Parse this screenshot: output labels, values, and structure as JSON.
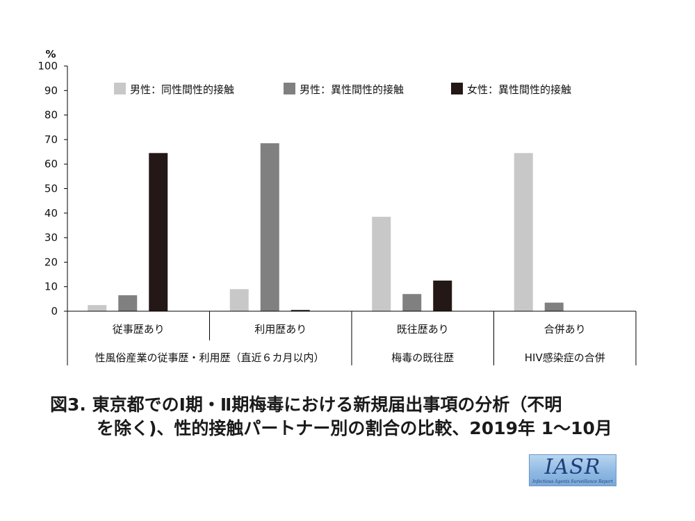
{
  "chart_data": {
    "type": "bar",
    "y_unit": "%",
    "ylim": [
      0,
      100
    ],
    "yticks": [
      0,
      10,
      20,
      30,
      40,
      50,
      60,
      70,
      80,
      90,
      100
    ],
    "grid": false,
    "legend_position": "top",
    "categories": [
      "従事歴あり",
      "利用歴あり",
      "既往歴あり",
      "合併あり"
    ],
    "group_labels": [
      {
        "label": "性風俗産業の従事歴・利用歴（直近６カ月以内）",
        "span": [
          0,
          1
        ]
      },
      {
        "label": "梅毒の既往歴",
        "span": [
          2,
          2
        ]
      },
      {
        "label": "HIV感染症の合併",
        "span": [
          3,
          3
        ]
      }
    ],
    "series": [
      {
        "name": "男性：同性間性的接触",
        "color": "#c8c8c8",
        "values": [
          2.5,
          9,
          38.5,
          64.5
        ]
      },
      {
        "name": "男性：異性間性的接触",
        "color": "#808080",
        "values": [
          6.5,
          68.5,
          7,
          3.5
        ]
      },
      {
        "name": "女性：異性間性的接触",
        "color": "#231815",
        "values": [
          64.5,
          0.5,
          12.5,
          0
        ]
      }
    ]
  },
  "caption": {
    "line1": "図3. 東京都でのⅠ期・Ⅱ期梅毒における新規届出事項の分析（不明",
    "line2": "を除く)、性的接触パートナー別の割合の比較、2019年 1〜10月"
  },
  "logo": {
    "main": "IASR",
    "sub": "Infectious Agents Surveillance Report"
  }
}
